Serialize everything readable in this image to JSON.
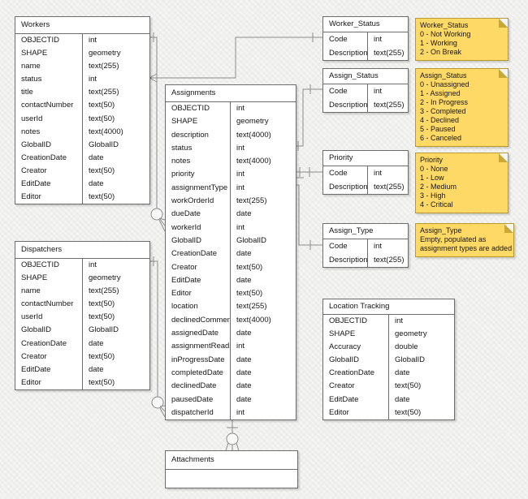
{
  "colors": {
    "background": "#f4f4f2",
    "table_fill": "#ffffff",
    "table_border": "#6d6d6d",
    "connector": "#8c8c8c",
    "note_fill": "#ffd966",
    "note_border": "#b79b2c",
    "text": "#161616"
  },
  "tables": {
    "workers": {
      "title": "Workers",
      "fields": [
        {
          "name": "OBJECTID",
          "type": "int"
        },
        {
          "name": "SHAPE",
          "type": "geometry"
        },
        {
          "name": "name",
          "type": "text(255)"
        },
        {
          "name": "status",
          "type": "int"
        },
        {
          "name": "title",
          "type": "text(255)"
        },
        {
          "name": "contactNumber",
          "type": "text(50)"
        },
        {
          "name": "userId",
          "type": "text(50)"
        },
        {
          "name": "notes",
          "type": "text(4000)"
        },
        {
          "name": "GlobalID",
          "type": "GlobalID"
        },
        {
          "name": "CreationDate",
          "type": "date"
        },
        {
          "name": "Creator",
          "type": "text(50)"
        },
        {
          "name": "EditDate",
          "type": "date"
        },
        {
          "name": "Editor",
          "type": "text(50)"
        }
      ]
    },
    "dispatchers": {
      "title": "Dispatchers",
      "fields": [
        {
          "name": "OBJECTID",
          "type": "int"
        },
        {
          "name": "SHAPE",
          "type": "geometry"
        },
        {
          "name": "name",
          "type": "text(255)"
        },
        {
          "name": "contactNumber",
          "type": "text(50)"
        },
        {
          "name": "userId",
          "type": "text(50)"
        },
        {
          "name": "GlobalID",
          "type": "GlobalID"
        },
        {
          "name": "CreationDate",
          "type": "date"
        },
        {
          "name": "Creator",
          "type": "text(50)"
        },
        {
          "name": "EditDate",
          "type": "date"
        },
        {
          "name": "Editor",
          "type": "text(50)"
        }
      ]
    },
    "assignments": {
      "title": "Assignments",
      "fields": [
        {
          "name": "OBJECTID",
          "type": "int"
        },
        {
          "name": "SHAPE",
          "type": "geometry"
        },
        {
          "name": "description",
          "type": "text(4000)"
        },
        {
          "name": "status",
          "type": "int"
        },
        {
          "name": "notes",
          "type": "text(4000)"
        },
        {
          "name": "priority",
          "type": "int"
        },
        {
          "name": "assignmentType",
          "type": "int"
        },
        {
          "name": "workOrderId",
          "type": "text(255)"
        },
        {
          "name": "dueDate",
          "type": "date"
        },
        {
          "name": "workerId",
          "type": "int"
        },
        {
          "name": "GlobalID",
          "type": "GlobalID"
        },
        {
          "name": "CreationDate",
          "type": "date"
        },
        {
          "name": "Creator",
          "type": "text(50)"
        },
        {
          "name": "EditDate",
          "type": "date"
        },
        {
          "name": "Editor",
          "type": "text(50)"
        },
        {
          "name": "location",
          "type": "text(255)"
        },
        {
          "name": "declinedComment",
          "type": "text(4000)"
        },
        {
          "name": "assignedDate",
          "type": "date"
        },
        {
          "name": "assignmentRead",
          "type": "int"
        },
        {
          "name": "inProgressDate",
          "type": "date"
        },
        {
          "name": "completedDate",
          "type": "date"
        },
        {
          "name": "declinedDate",
          "type": "date"
        },
        {
          "name": "pausedDate",
          "type": "date"
        },
        {
          "name": "dispatcherId",
          "type": "int"
        }
      ]
    },
    "worker_status": {
      "title": "Worker_Status",
      "fields": [
        {
          "name": "Code",
          "type": "int"
        },
        {
          "name": "Description",
          "type": "text(255)"
        }
      ]
    },
    "assign_status": {
      "title": "Assign_Status",
      "fields": [
        {
          "name": "Code",
          "type": "int"
        },
        {
          "name": "Description",
          "type": "text(255)"
        }
      ]
    },
    "priority": {
      "title": "Priority",
      "fields": [
        {
          "name": "Code",
          "type": "int"
        },
        {
          "name": "Description",
          "type": "text(255)"
        }
      ]
    },
    "assign_type": {
      "title": "Assign_Type",
      "fields": [
        {
          "name": "Code",
          "type": "int"
        },
        {
          "name": "Description",
          "type": "text(255)"
        }
      ]
    },
    "location_tracking": {
      "title": "Location Tracking",
      "fields": [
        {
          "name": "OBJECTID",
          "type": "int"
        },
        {
          "name": "SHAPE",
          "type": "geometry"
        },
        {
          "name": "Accuracy",
          "type": "double"
        },
        {
          "name": "GlobalID",
          "type": "GlobalID"
        },
        {
          "name": "CreationDate",
          "type": "date"
        },
        {
          "name": "Creator",
          "type": "text(50)"
        },
        {
          "name": "EditDate",
          "type": "date"
        },
        {
          "name": "Editor",
          "type": "text(50)"
        }
      ]
    },
    "attachments": {
      "title": "Attachments",
      "fields": []
    }
  },
  "notes": {
    "worker_status": {
      "title": "Worker_Status",
      "lines": [
        "0 - Not Working",
        "1 - Working",
        "2 - On Break"
      ]
    },
    "assign_status": {
      "title": "Assign_Status",
      "lines": [
        "0 - Unassigned",
        "1 - Assigned",
        "2 - In Progress",
        "3 - Completed",
        "4 - Declined",
        "5 - Paused",
        "6 - Canceled"
      ]
    },
    "priority": {
      "title": "Priority",
      "lines": [
        "0 - None",
        "1 - Low",
        "2 - Medium",
        "3 - High",
        "4 - Critical"
      ]
    },
    "assign_type": {
      "title": "Assign_Type",
      "lines": [
        "Empty, populated as",
        "assignment types are added"
      ]
    }
  }
}
